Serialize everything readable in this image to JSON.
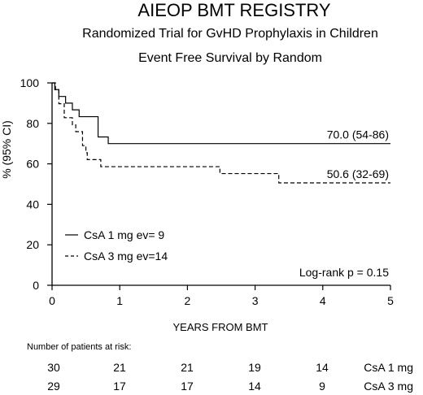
{
  "chart_data": {
    "type": "line",
    "title": "AIEOP BMT REGISTRY",
    "subtitle": "Randomized Trial for GvHD Prophylaxis in Children",
    "subtitle2": "Event Free Survival by Random",
    "xlabel": "YEARS FROM BMT",
    "ylabel": "% (95% CI)",
    "xlim": [
      0,
      5
    ],
    "ylim": [
      0,
      100
    ],
    "xticks": [
      0,
      1,
      2,
      3,
      4,
      5
    ],
    "yticks": [
      0,
      20,
      40,
      60,
      80,
      100
    ],
    "grid": false,
    "legend_position": "bottom-left",
    "series": [
      {
        "name": "CsA 1 mg",
        "legend_label": "CsA 1 mg  ev=  9",
        "line_style": "solid",
        "end_label": "70.0 (54-86)",
        "steps": [
          [
            0,
            100
          ],
          [
            0.04,
            96.7
          ],
          [
            0.1,
            93.3
          ],
          [
            0.2,
            90
          ],
          [
            0.3,
            86.7
          ],
          [
            0.4,
            83.3
          ],
          [
            0.68,
            73.3
          ],
          [
            0.83,
            70.0
          ],
          [
            5,
            70.0
          ]
        ]
      },
      {
        "name": "CsA 3 mg",
        "legend_label": "CsA 3 mg  ev=14",
        "line_style": "dashed",
        "end_label": "50.6 (32-69)",
        "steps": [
          [
            0,
            100
          ],
          [
            0.05,
            96.6
          ],
          [
            0.1,
            89.7
          ],
          [
            0.18,
            82.8
          ],
          [
            0.3,
            79.3
          ],
          [
            0.35,
            75.9
          ],
          [
            0.45,
            69.0
          ],
          [
            0.5,
            65.5
          ],
          [
            0.52,
            62.1
          ],
          [
            0.72,
            58.6
          ],
          [
            2.48,
            55.2
          ],
          [
            3.35,
            50.6
          ],
          [
            5,
            50.6
          ]
        ]
      }
    ],
    "annotation": "Log-rank p = 0.15",
    "risk_table": {
      "title": "Number of patients at risk:",
      "rows": [
        {
          "label": "CsA 1 mg",
          "values": [
            "30",
            "21",
            "21",
            "19",
            "14"
          ]
        },
        {
          "label": "CsA 3 mg",
          "values": [
            "29",
            "17",
            "17",
            "14",
            "9"
          ]
        }
      ]
    }
  }
}
